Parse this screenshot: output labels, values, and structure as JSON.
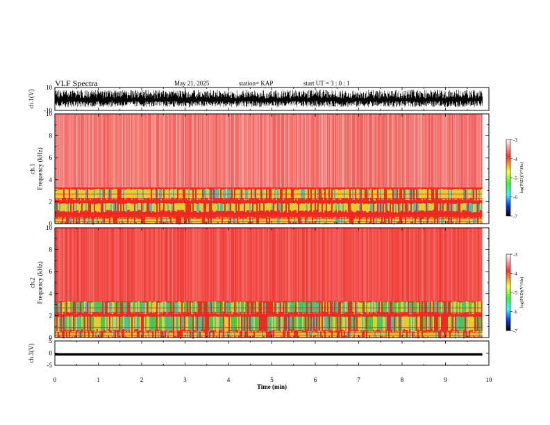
{
  "header": {
    "title": "VLF Spectra",
    "date": "May 21, 2025",
    "station": "station= KAP",
    "start_ut": "start  UT =   3 : 0  : 1"
  },
  "colors": {
    "spectrogram_base": "#f02a24",
    "band_yellow": "#e8e832",
    "band_green": "#30e050",
    "band_cyan": "#30d8d0",
    "trace": "#000000"
  },
  "colorbar": {
    "label": "log(PSD)(V²/Hz)",
    "ticks": [
      "-3",
      "-4",
      "-5",
      "-6",
      "-7"
    ],
    "range": [
      -7,
      -3
    ]
  },
  "chart_data": [
    {
      "type": "line",
      "id": "ch1-waveform",
      "ylabel": "ch.1(V)",
      "ylim": [
        -10,
        10
      ],
      "y_ticks": [
        "10",
        "-10"
      ],
      "xlim": [
        0,
        10
      ],
      "data_end_min": 9.85,
      "description_values": {
        "amplitude_range": [
          -7,
          8
        ]
      }
    },
    {
      "type": "heatmap",
      "id": "ch1-spectrogram",
      "ylabel": "ch.1\nFrequency  (kHz)",
      "ylim": [
        0,
        10
      ],
      "y_ticks": [
        "0",
        "2",
        "4",
        "6",
        "8",
        "10"
      ],
      "xlim": [
        0,
        10
      ],
      "data_end_min": 9.85,
      "bands_khz": [
        {
          "from": 0.0,
          "to": 0.6,
          "level": "yellow"
        },
        {
          "from": 1.1,
          "to": 1.9,
          "level": "yellow"
        },
        {
          "from": 2.2,
          "to": 3.2,
          "level": "yellow"
        }
      ]
    },
    {
      "type": "heatmap",
      "id": "ch2-spectrogram",
      "ylabel": "ch.2\nFrequency  (kHz)",
      "ylim": [
        0,
        10
      ],
      "y_ticks": [
        "0",
        "2",
        "4",
        "6",
        "8",
        "10"
      ],
      "xlim": [
        0,
        10
      ],
      "data_end_min": 9.85,
      "bands_khz": [
        {
          "from": 0.0,
          "to": 0.6,
          "level": "yellow"
        },
        {
          "from": 0.6,
          "to": 2.0,
          "level": "green"
        },
        {
          "from": 2.2,
          "to": 3.3,
          "level": "green"
        }
      ]
    },
    {
      "type": "line",
      "id": "ch3-waveform",
      "ylabel": "ch.3(V)",
      "ylim": [
        -5,
        5
      ],
      "y_ticks": [
        "5",
        "0",
        "-5"
      ],
      "xlim": [
        0,
        10
      ],
      "data_end_min": 9.85,
      "description_values": {
        "level": [
          -1.0,
          0.0
        ]
      }
    }
  ],
  "x_axis": {
    "label": "Time  (min)",
    "ticks": [
      "0",
      "1",
      "2",
      "3",
      "4",
      "5",
      "6",
      "7",
      "8",
      "9",
      "10"
    ]
  }
}
